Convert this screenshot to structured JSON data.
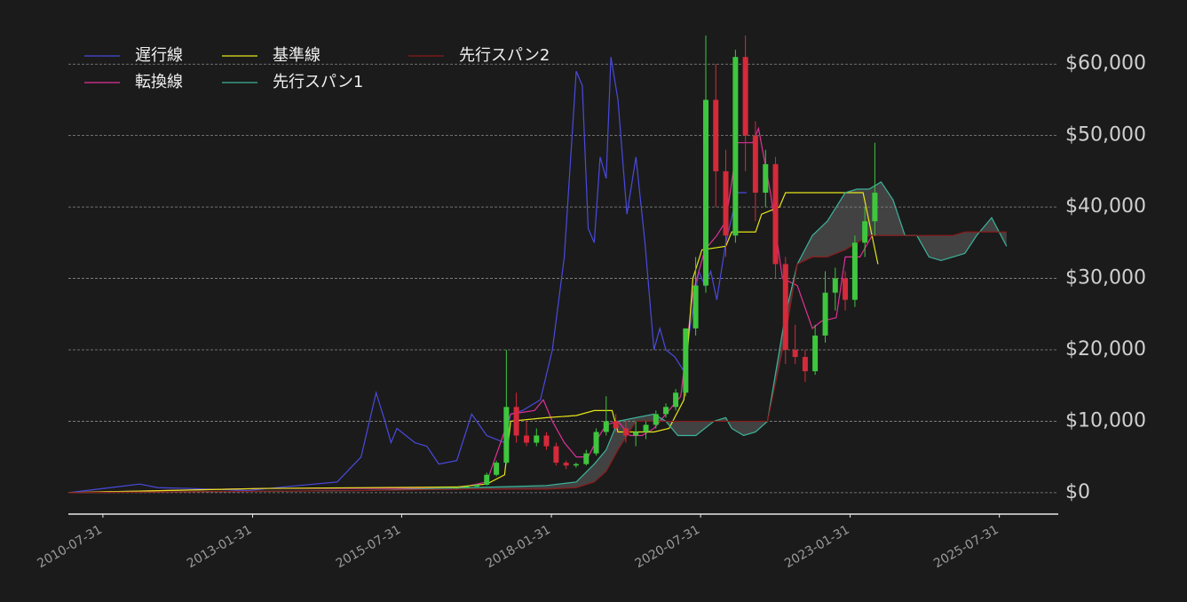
{
  "chart_data": {
    "type": "ichimoku",
    "xlim": [
      "2010-01-01",
      "2026-07-26"
    ],
    "xticks": [
      "2010-07-31",
      "2013-01-31",
      "2015-07-31",
      "2018-01-31",
      "2020-07-31",
      "2023-01-31",
      "2025-07-31"
    ],
    "ylim": [
      -3000,
      65000
    ],
    "yticks": [
      {
        "value": 0,
        "label": "$0"
      },
      {
        "value": 10000,
        "label": "$10,000"
      },
      {
        "value": 20000,
        "label": "$20,000"
      },
      {
        "value": 30000,
        "label": "$30,000"
      },
      {
        "value": 40000,
        "label": "$40,000"
      },
      {
        "value": 50000,
        "label": "$50,000"
      },
      {
        "value": 60000,
        "label": "$60,000"
      }
    ],
    "grid": true,
    "legend": "upper left",
    "cloud_color": "rgba(140,140,140,0.35)",
    "candles": {
      "up_color": "#3ec63e",
      "down_color": "#d42a3a",
      "x": [
        "2016-07-01",
        "2016-09-01",
        "2016-11-01",
        "2017-01-01",
        "2017-03-01",
        "2017-05-01",
        "2017-07-01",
        "2017-09-01",
        "2017-11-01",
        "2018-01-01",
        "2018-03-01",
        "2018-05-01",
        "2018-07-01",
        "2018-09-01",
        "2018-11-01",
        "2019-01-01",
        "2019-03-01",
        "2019-05-01",
        "2019-07-01",
        "2019-09-01",
        "2019-11-01",
        "2020-01-01",
        "2020-03-01",
        "2020-05-01",
        "2020-07-01",
        "2020-09-01",
        "2020-11-01",
        "2021-01-01",
        "2021-03-01",
        "2021-05-01",
        "2021-07-01",
        "2021-09-01",
        "2021-11-01",
        "2022-01-01",
        "2022-03-01",
        "2022-05-01",
        "2022-07-01",
        "2022-09-01",
        "2022-11-01",
        "2023-01-01",
        "2023-03-01",
        "2023-05-01",
        "2023-07-01"
      ],
      "open": [
        600,
        700,
        850,
        1100,
        2500,
        4200,
        12000,
        8000,
        7000,
        8000,
        6500,
        4200,
        3800,
        4000,
        5500,
        8500,
        10000,
        9000,
        8000,
        8500,
        9500,
        11000,
        12000,
        14000,
        23000,
        29000,
        55000,
        45000,
        36000,
        61000,
        50000,
        42000,
        46000,
        32000,
        20000,
        19000,
        17000,
        22000,
        28000,
        30000,
        27000,
        35000,
        38000
      ],
      "high": [
        750,
        900,
        1200,
        2800,
        4500,
        20000,
        14000,
        10000,
        9000,
        8500,
        7000,
        4500,
        4200,
        6000,
        9000,
        13500,
        11000,
        10000,
        10000,
        10000,
        11500,
        12500,
        14500,
        23000,
        33000,
        64000,
        60000,
        48000,
        62000,
        64000,
        52000,
        48000,
        47000,
        33000,
        23500,
        20000,
        23500,
        31000,
        31500,
        31000,
        36000,
        40000,
        49000
      ],
      "low": [
        550,
        650,
        800,
        1000,
        2300,
        4000,
        7000,
        6500,
        6500,
        6000,
        3800,
        3300,
        3500,
        3800,
        5200,
        8000,
        8500,
        7000,
        6500,
        7500,
        9000,
        10500,
        11500,
        13500,
        22000,
        28000,
        40000,
        33000,
        35000,
        45000,
        38000,
        40000,
        30000,
        18000,
        18000,
        15500,
        16500,
        21000,
        25500,
        25500,
        26000,
        33000,
        36000
      ],
      "close": [
        700,
        850,
        1100,
        2500,
        4200,
        12000,
        8000,
        7000,
        8000,
        6500,
        4200,
        3800,
        4000,
        5500,
        8500,
        10000,
        9000,
        8000,
        8500,
        9500,
        11000,
        12000,
        14000,
        23000,
        29000,
        55000,
        45000,
        36000,
        61000,
        50000,
        42000,
        46000,
        32000,
        20000,
        19000,
        17000,
        22000,
        28000,
        30000,
        27000,
        35000,
        38000,
        42000
      ]
    },
    "series": [
      {
        "name": "遅行線",
        "color": "#4a4ae0",
        "x": [
          "2010-01-01",
          "2011-03-14",
          "2011-07-02",
          "2012-01-01",
          "2013-01-01",
          "2013-08-08",
          "2014-07-02",
          "2014-11-25",
          "2015-02-25",
          "2015-04-20",
          "2015-05-27",
          "2015-07-02",
          "2015-10-20",
          "2016-01-01",
          "2016-03-14",
          "2016-07-02",
          "2016-10-01",
          "2017-01-01",
          "2017-04-20",
          "2017-05-27",
          "2017-08-08",
          "2017-11-25",
          "2018-02-06",
          "2018-04-20",
          "2018-07-02",
          "2018-08-08",
          "2018-09-13",
          "2018-10-20",
          "2018-11-25",
          "2019-01-01",
          "2019-01-30",
          "2019-03-14",
          "2019-05-08",
          "2019-07-02",
          "2019-08-26",
          "2019-10-20",
          "2019-11-25",
          "2020-01-01",
          "2020-02-25",
          "2020-04-20",
          "2020-05-27",
          "2020-07-20",
          "2020-08-26",
          "2020-10-01",
          "2020-11-07",
          "2021-01-01",
          "2021-03-14",
          "2021-05-08"
        ],
        "values": [
          0,
          1200,
          700,
          600,
          300,
          800,
          1500,
          5000,
          14000,
          10000,
          7000,
          9000,
          7000,
          6500,
          4000,
          4500,
          11000,
          8000,
          7000,
          11000,
          11500,
          13000,
          20000,
          33000,
          59000,
          57000,
          37000,
          35000,
          47000,
          44000,
          61000,
          55000,
          39000,
          47000,
          35000,
          20000,
          23000,
          20000,
          19000,
          17000,
          23000,
          31000,
          29000,
          31000,
          27000,
          35000,
          42000,
          42000
        ]
      },
      {
        "name": "転換線",
        "color": "#e0309a",
        "x": [
          "2010-01-01",
          "2013-04-20",
          "2016-07-02",
          "2017-01-01",
          "2017-05-27",
          "2017-10-20",
          "2017-12-13",
          "2018-02-06",
          "2018-04-20",
          "2018-07-02",
          "2018-09-13",
          "2018-11-07",
          "2019-01-01",
          "2019-03-14",
          "2019-05-27",
          "2019-08-08",
          "2019-10-20",
          "2020-01-01",
          "2020-04-01",
          "2020-06-14",
          "2020-08-26",
          "2020-11-07",
          "2021-01-01",
          "2021-03-14",
          "2021-06-14",
          "2021-07-20",
          "2021-10-01",
          "2021-12-13",
          "2022-03-14",
          "2022-06-14",
          "2022-08-08",
          "2022-11-07",
          "2023-01-01",
          "2023-04-01",
          "2023-06-14"
        ],
        "values": [
          0,
          600,
          600,
          1500,
          11000,
          11500,
          13000,
          10000,
          7000,
          5000,
          5000,
          7500,
          9500,
          10000,
          8000,
          8000,
          9000,
          11000,
          13500,
          28000,
          34000,
          36000,
          38000,
          49000,
          49000,
          51000,
          42000,
          30000,
          29000,
          23000,
          24000,
          24500,
          33000,
          33000,
          36000
        ]
      },
      {
        "name": "基準線",
        "color": "#e6e619",
        "x": [
          "2010-01-01",
          "2013-04-20",
          "2016-07-02",
          "2017-01-01",
          "2017-04-20",
          "2017-05-27",
          "2018-01-01",
          "2018-07-02",
          "2018-10-20",
          "2019-02-06",
          "2019-03-14",
          "2019-10-20",
          "2020-01-20",
          "2020-04-20",
          "2020-06-14",
          "2020-08-08",
          "2021-01-01",
          "2021-02-06",
          "2021-07-02",
          "2021-08-08",
          "2021-11-25",
          "2022-01-01",
          "2022-07-02",
          "2023-04-20",
          "2023-07-20"
        ],
        "values": [
          0,
          600,
          800,
          1200,
          2500,
          10000,
          10500,
          10800,
          11500,
          11500,
          8500,
          8500,
          9000,
          13000,
          30000,
          34000,
          34500,
          36500,
          36500,
          39000,
          40000,
          42000,
          42000,
          42000,
          32000
        ]
      },
      {
        "name": "先行スパン1",
        "color": "#3cb39a",
        "x": [
          "2010-01-01",
          "2015-01-01",
          "2016-09-13",
          "2017-08-08",
          "2018-01-01",
          "2018-07-02",
          "2018-10-20",
          "2019-01-01",
          "2019-03-14",
          "2019-07-02",
          "2019-10-20",
          "2020-01-01",
          "2020-03-14",
          "2020-07-02",
          "2020-10-20",
          "2021-01-01",
          "2021-02-06",
          "2021-04-20",
          "2021-07-02",
          "2021-09-13",
          "2022-01-01",
          "2022-03-14",
          "2022-06-14",
          "2022-09-13",
          "2023-01-01",
          "2023-03-14",
          "2023-05-27",
          "2023-08-08",
          "2023-10-20",
          "2024-01-01",
          "2024-03-14",
          "2024-05-27",
          "2024-08-08",
          "2024-10-20",
          "2025-01-01",
          "2025-03-14",
          "2025-06-14",
          "2025-09-13"
        ],
        "values": [
          0,
          300,
          700,
          900,
          1000,
          1500,
          4000,
          6000,
          10000,
          10500,
          11000,
          10000,
          8000,
          8000,
          10000,
          10500,
          9000,
          8000,
          8500,
          10000,
          25000,
          32000,
          36000,
          38000,
          42000,
          42500,
          42500,
          43500,
          41000,
          36000,
          36000,
          33000,
          32500,
          33000,
          33500,
          36000,
          38500,
          34500
        ]
      },
      {
        "name": "先行スパン2",
        "color": "#8b1a1a",
        "x": [
          "2010-01-01",
          "2015-01-01",
          "2016-09-13",
          "2017-08-08",
          "2018-01-01",
          "2018-07-02",
          "2018-10-20",
          "2019-01-01",
          "2019-03-14",
          "2019-07-02",
          "2019-10-20",
          "2020-01-01",
          "2020-03-14",
          "2020-07-02",
          "2020-10-20",
          "2021-01-01",
          "2021-02-06",
          "2021-04-20",
          "2021-07-02",
          "2021-09-13",
          "2022-01-01",
          "2022-03-14",
          "2022-06-14",
          "2022-09-13",
          "2023-01-01",
          "2023-03-14",
          "2023-05-27",
          "2023-08-08",
          "2023-10-20",
          "2024-01-01",
          "2024-03-14",
          "2024-05-27",
          "2024-08-08",
          "2024-10-20",
          "2025-01-01",
          "2025-03-14",
          "2025-06-14",
          "2025-09-13"
        ],
        "values": [
          0,
          300,
          500,
          500,
          500,
          700,
          1500,
          3000,
          6000,
          10000,
          10000,
          10000,
          10000,
          10000,
          10000,
          10000,
          10000,
          10000,
          10000,
          10000,
          22000,
          32000,
          33000,
          33000,
          34000,
          35000,
          36000,
          36000,
          36000,
          36000,
          36000,
          36000,
          36000,
          36000,
          36500,
          36500,
          36500,
          36500
        ]
      }
    ]
  }
}
